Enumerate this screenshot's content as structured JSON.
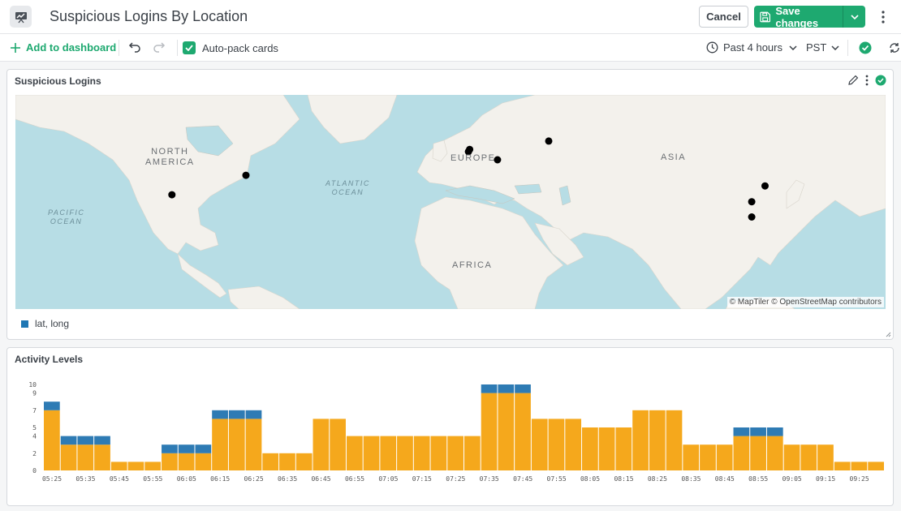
{
  "header": {
    "title": "Suspicious Logins By Location",
    "cancel_label": "Cancel",
    "save_label": "Save changes"
  },
  "toolbar": {
    "add_label": "Add to dashboard",
    "autopack_label": "Auto-pack cards",
    "time_range": "Past 4 hours",
    "timezone": "PST"
  },
  "map_card": {
    "title": "Suspicious Logins",
    "attribution": "© MapTiler © OpenStreetMap contributors",
    "legend_label": "lat, long",
    "legend_color": "#1f77b4",
    "labels": {
      "north_america_1": "NORTH",
      "north_america_2": "AMERICA",
      "europe": "EUROPE",
      "asia": "ASIA",
      "africa": "AFRICA",
      "atlantic_1": "ATLANTIC",
      "atlantic_2": "OCEAN",
      "pacific_1": "PACIFIC",
      "pacific_2": "OCEAN"
    },
    "points": [
      {
        "lat": 34.0,
        "long": -118.2
      },
      {
        "lat": 41.9,
        "long": -87.6
      },
      {
        "lat": 52.4,
        "long": 4.9
      },
      {
        "lat": 51.5,
        "long": 4.4
      },
      {
        "lat": 48.2,
        "long": 16.4
      },
      {
        "lat": 55.8,
        "long": 37.6
      },
      {
        "lat": 37.6,
        "long": 127.0
      },
      {
        "lat": 31.2,
        "long": 121.5
      },
      {
        "lat": 25.0,
        "long": 121.5
      }
    ]
  },
  "chart_card": {
    "title": "Activity Levels"
  },
  "colors": {
    "accent": "#1ea970",
    "bar_primary": "#f5a81c",
    "bar_secondary": "#2e7bb4"
  },
  "chart_data": {
    "type": "bar",
    "stacked": true,
    "title": "Activity Levels",
    "xlabel": "",
    "ylabel": "",
    "ylim": [
      0,
      10
    ],
    "yticks": [
      0,
      2,
      4,
      5,
      7,
      9,
      10
    ],
    "grid": false,
    "x_tick_labels": [
      "05:25",
      "05:35",
      "05:45",
      "05:55",
      "06:05",
      "06:15",
      "06:25",
      "06:35",
      "06:45",
      "06:55",
      "07:05",
      "07:15",
      "07:25",
      "07:35",
      "07:45",
      "07:55",
      "08:05",
      "08:15",
      "08:25",
      "08:35",
      "08:45",
      "08:55",
      "09:05",
      "09:15",
      "09:25"
    ],
    "series": [
      {
        "color": "#f5a81c",
        "values": [
          7,
          3,
          3,
          3,
          1,
          1,
          1,
          2,
          2,
          2,
          6,
          6,
          6,
          2,
          2,
          2,
          6,
          6,
          4,
          4,
          4,
          4,
          4,
          4,
          4,
          4,
          9,
          9,
          9,
          6,
          6,
          6,
          5,
          5,
          5,
          7,
          7,
          7,
          3,
          3,
          3,
          4,
          4,
          4,
          3,
          3,
          3,
          1,
          1,
          1
        ]
      },
      {
        "color": "#2e7bb4",
        "values": [
          1,
          1,
          1,
          1,
          0,
          0,
          0,
          1,
          1,
          1,
          1,
          1,
          1,
          0,
          0,
          0,
          0,
          0,
          0,
          0,
          0,
          0,
          0,
          0,
          0,
          0,
          1,
          1,
          1,
          0,
          0,
          0,
          0,
          0,
          0,
          0,
          0,
          0,
          0,
          0,
          0,
          1,
          1,
          1,
          0,
          0,
          0,
          0,
          0,
          0
        ]
      }
    ]
  }
}
